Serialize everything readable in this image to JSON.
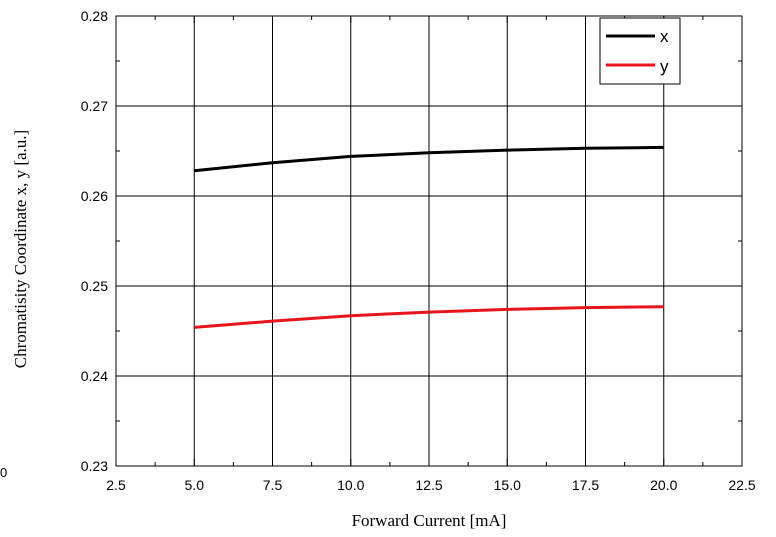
{
  "chart_data": {
    "type": "line",
    "xlabel": "Forward Current [mA]",
    "ylabel": "Chromatisity Coordinate x, y [a.u.]",
    "xlim": [
      2.5,
      22.5
    ],
    "ylim": [
      0.23,
      0.28
    ],
    "xticks": [
      2.5,
      5.0,
      7.5,
      10.0,
      12.5,
      15.0,
      17.5,
      20.0,
      22.5
    ],
    "xtick_labels": [
      "2.5",
      "5.0",
      "7.5",
      "10.0",
      "12.5",
      "15.0",
      "17.5",
      "20.0",
      "22.5"
    ],
    "yticks": [
      0.23,
      0.24,
      0.25,
      0.26,
      0.27,
      0.28
    ],
    "ytick_labels": [
      "0.23",
      "0.24",
      "0.25",
      "0.26",
      "0.27",
      "0.28"
    ],
    "grid": true,
    "legend_position": "top-right",
    "series": [
      {
        "name": "x",
        "color": "#000000",
        "x": [
          5.0,
          7.5,
          10.0,
          12.5,
          15.0,
          17.5,
          20.0
        ],
        "values": [
          0.2628,
          0.2637,
          0.2644,
          0.2648,
          0.2651,
          0.2653,
          0.2654
        ]
      },
      {
        "name": "y",
        "color": "#e8141b",
        "x": [
          5.0,
          7.5,
          10.0,
          12.5,
          15.0,
          17.5,
          20.0
        ],
        "values": [
          0.2454,
          0.2461,
          0.2467,
          0.2471,
          0.2474,
          0.2476,
          0.2477
        ]
      }
    ]
  },
  "stray_label": "0"
}
